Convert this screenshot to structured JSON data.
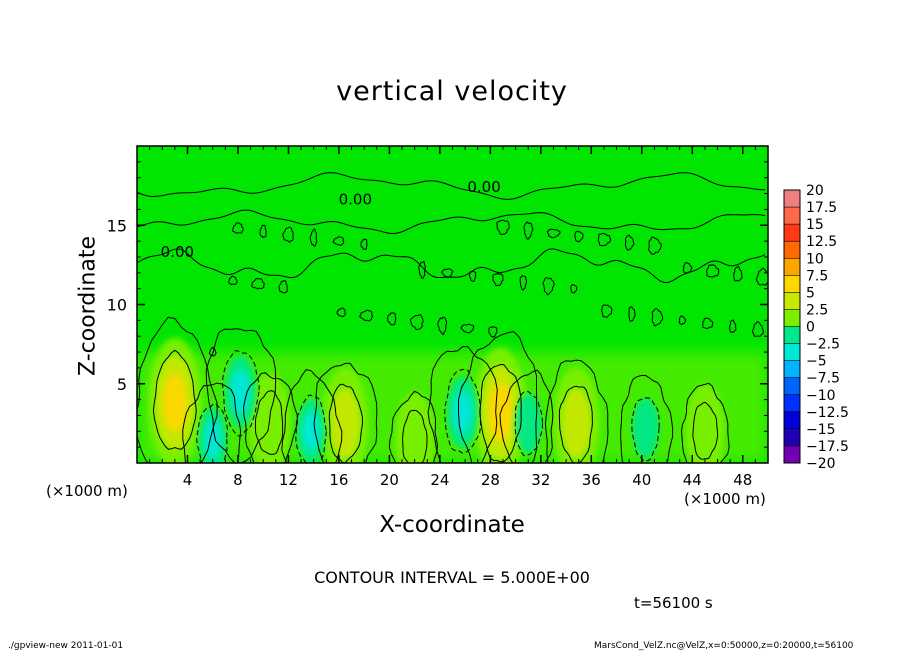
{
  "chart_data": {
    "type": "heatmap",
    "title": "vertical velocity",
    "xlabel": "X-coordinate",
    "ylabel": "Z-coordinate",
    "x_unit": "(×1000 m)",
    "z_unit": "(×1000 m)",
    "xlim": [
      0,
      50
    ],
    "zlim": [
      0,
      20
    ],
    "xticks": [
      "4",
      "8",
      "12",
      "16",
      "20",
      "24",
      "28",
      "32",
      "36",
      "40",
      "44",
      "48"
    ],
    "xtick_values": [
      4,
      8,
      12,
      16,
      20,
      24,
      28,
      32,
      36,
      40,
      44,
      48
    ],
    "zticks": [
      "5",
      "10",
      "15"
    ],
    "ztick_values": [
      5,
      10,
      15
    ],
    "contour_label": "0.00",
    "contour_interval_text": "CONTOUR INTERVAL = 5.000E+00",
    "time_text": "t=56100 s",
    "colorbar": {
      "labels": [
        "20",
        "17.5",
        "15",
        "12.5",
        "10",
        "7.5",
        "5",
        "2.5",
        "0",
        "−2.5",
        "−5",
        "−7.5",
        "−10",
        "−12.5",
        "−15",
        "−17.5",
        "−20"
      ],
      "levels": [
        20,
        17.5,
        15,
        12.5,
        10,
        7.5,
        5,
        2.5,
        0,
        -2.5,
        -5,
        -7.5,
        -10,
        -12.5,
        -15,
        -17.5,
        -20
      ],
      "colors": [
        "#f08080",
        "#ff6a4a",
        "#ff3a14",
        "#ff6a00",
        "#ffa500",
        "#ffd700",
        "#c8e800",
        "#7cf000",
        "#00e600",
        "#00e88c",
        "#00e8d8",
        "#00b4ff",
        "#0064ff",
        "#0030ff",
        "#0000d8",
        "#2000b0",
        "#7000b0"
      ]
    },
    "features": [
      {
        "kind": "updraft",
        "x": 3.0,
        "z": 3.8,
        "value": 9
      },
      {
        "kind": "updraft",
        "x": 16.5,
        "z": 2.5,
        "value": 6
      },
      {
        "kind": "updraft",
        "x": 28.8,
        "z": 3.2,
        "value": 9
      },
      {
        "kind": "updraft",
        "x": 34.8,
        "z": 2.5,
        "value": 6
      },
      {
        "kind": "updraft",
        "x": 10.5,
        "z": 2.5,
        "value": 4
      },
      {
        "kind": "updraft",
        "x": 22.0,
        "z": 1.5,
        "value": 3
      },
      {
        "kind": "updraft",
        "x": 45.0,
        "z": 2.0,
        "value": 3
      },
      {
        "kind": "downdraft",
        "x": 8.2,
        "z": 4.5,
        "value": -7
      },
      {
        "kind": "downdraft",
        "x": 6.0,
        "z": 1.5,
        "value": -5
      },
      {
        "kind": "downdraft",
        "x": 13.8,
        "z": 2.0,
        "value": -5
      },
      {
        "kind": "downdraft",
        "x": 25.8,
        "z": 3.2,
        "value": -7
      },
      {
        "kind": "downdraft",
        "x": 31.0,
        "z": 2.5,
        "value": -4
      },
      {
        "kind": "downdraft",
        "x": 40.3,
        "z": 2.2,
        "value": -4
      }
    ]
  },
  "footer": {
    "left": "./gpview-new   2011-01-01",
    "right": "MarsCond_VelZ.nc@VelZ,x=0:50000,z=0:20000,t=56100"
  }
}
